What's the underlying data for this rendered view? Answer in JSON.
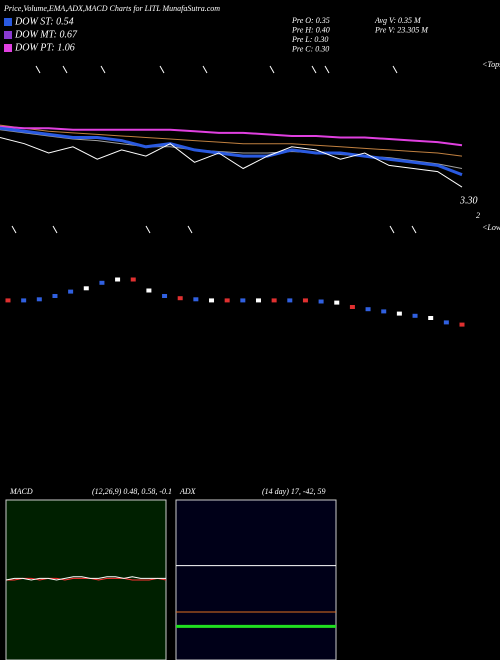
{
  "header": {
    "title": "Price,Volume,EMA,ADX,MACD Charts for LITL MunafaSutra.com",
    "legend": [
      {
        "name": "DOW ST: 0.54",
        "color": "#2a5ae0"
      },
      {
        "name": "DOW MT: 0.67",
        "color": "#8a3ad0"
      },
      {
        "name": "DOW PT: 1.06",
        "color": "#e040e0"
      }
    ],
    "info": [
      [
        "Pre  O: 0.35",
        "Avg V: 0.35 M"
      ],
      [
        "Pre  H: 0.40",
        "Pre  V: 23.305 M"
      ],
      [
        "Pre  L: 0.30"
      ],
      [
        "Pre  C: 0.30"
      ]
    ]
  },
  "chart_data": [
    {
      "type": "line",
      "price_label": "3.30",
      "axis_label": "2",
      "tops_label": "<Tops",
      "ylim": [
        0,
        100
      ],
      "series": [
        {
          "color": "#a0a0a0",
          "width": 1,
          "values": [
            55,
            53,
            51,
            49,
            48,
            46,
            44,
            44,
            42,
            41,
            40,
            40,
            41,
            40,
            39,
            38,
            37,
            35,
            33,
            30
          ]
        },
        {
          "color": "#c08040",
          "width": 1,
          "values": [
            58,
            56,
            54,
            53,
            52,
            51,
            50,
            49,
            48,
            47,
            46,
            46,
            46,
            45,
            44,
            43,
            42,
            41,
            40,
            38
          ]
        },
        {
          "color": "#e040e0",
          "width": 2,
          "values": [
            57,
            56,
            56,
            55,
            55,
            55,
            55,
            55,
            54,
            53,
            53,
            52,
            51,
            51,
            50,
            50,
            49,
            48,
            47,
            45
          ]
        },
        {
          "color": "#2a5ae0",
          "width": 3,
          "values": [
            56,
            54,
            52,
            50,
            50,
            48,
            44,
            46,
            42,
            40,
            38,
            38,
            42,
            40,
            40,
            38,
            36,
            34,
            32,
            26
          ]
        },
        {
          "color": "#ffffff",
          "width": 1,
          "values": [
            50,
            46,
            40,
            44,
            36,
            42,
            38,
            46,
            34,
            40,
            30,
            38,
            44,
            42,
            36,
            40,
            32,
            30,
            28,
            18
          ]
        }
      ]
    },
    {
      "type": "scatter",
      "lows_label": "<Lows",
      "ylim": [
        0,
        100
      ],
      "values": [
        36,
        36,
        37,
        40,
        44,
        47,
        52,
        55,
        55,
        45,
        40,
        38,
        37,
        36,
        36,
        36,
        36,
        36,
        36,
        36,
        35,
        34,
        30,
        28,
        26,
        24,
        22,
        20,
        16,
        14
      ],
      "colors": [
        "#e03030",
        "#3060e0",
        "#3060e0",
        "#3060e0",
        "#3060e0",
        "#ffffff",
        "#3060e0",
        "#ffffff",
        "#e03030",
        "#ffffff",
        "#3060e0",
        "#e03030",
        "#3060e0",
        "#ffffff",
        "#e03030",
        "#3060e0",
        "#ffffff",
        "#e03030",
        "#3060e0",
        "#e03030",
        "#3060e0",
        "#ffffff",
        "#e03030",
        "#3060e0",
        "#3060e0",
        "#ffffff",
        "#3060e0",
        "#ffffff",
        "#3060e0",
        "#e03030"
      ]
    },
    {
      "type": "line",
      "title": "MACD",
      "subtitle": "(12,26,9) 0.48, 0.58, -0.1",
      "background": "#002000",
      "ylim": [
        0,
        100
      ],
      "series": [
        {
          "color": "#ff3030",
          "width": 1,
          "values": [
            50,
            50,
            51,
            51,
            50,
            51,
            51,
            50,
            51,
            51,
            51,
            50,
            51,
            51,
            51,
            50,
            50,
            50,
            51,
            50
          ]
        },
        {
          "color": "#ffffff",
          "width": 1,
          "values": [
            50,
            51,
            51,
            50,
            51,
            51,
            50,
            51,
            52,
            52,
            51,
            51,
            52,
            52,
            51,
            52,
            51,
            51,
            51,
            51
          ]
        }
      ]
    },
    {
      "type": "line",
      "title": "ADX",
      "subtitle": "(14 day) 17, -42, 59",
      "background": "#000018",
      "ylim": [
        0,
        100
      ],
      "series": [
        {
          "color": "#ffffff",
          "width": 1,
          "values": [
            59,
            59,
            59,
            59,
            59,
            59,
            59,
            59,
            59,
            59
          ]
        },
        {
          "color": "#e07020",
          "width": 1,
          "values": [
            30,
            30,
            30,
            30,
            30,
            30,
            30,
            30,
            30,
            30
          ]
        },
        {
          "color": "#20e020",
          "width": 3,
          "values": [
            21,
            21,
            21,
            21,
            21,
            21,
            21,
            21,
            21,
            21
          ]
        }
      ]
    }
  ]
}
